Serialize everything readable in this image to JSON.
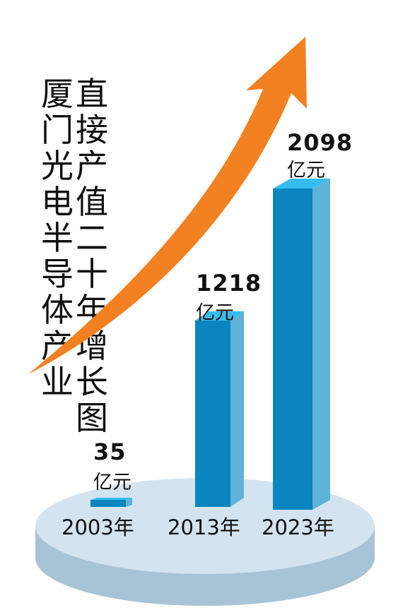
{
  "chart_data": {
    "type": "bar",
    "title_lines": [
      "厦门光电半导体产业",
      "直接产值二十年增长图"
    ],
    "categories": [
      "2003年",
      "2013年",
      "2023年"
    ],
    "values": [
      35,
      1218,
      2098
    ],
    "value_labels": [
      "35",
      "1218",
      "2098"
    ],
    "unit": "亿元",
    "colors": {
      "bar_front": "#0a85bf",
      "bar_side": "#5eb3d8",
      "bar_top": "#36bdf0",
      "arrow": "#f38021",
      "base_top": "#d3e3ef",
      "base_side": "#a9c3d6"
    }
  }
}
